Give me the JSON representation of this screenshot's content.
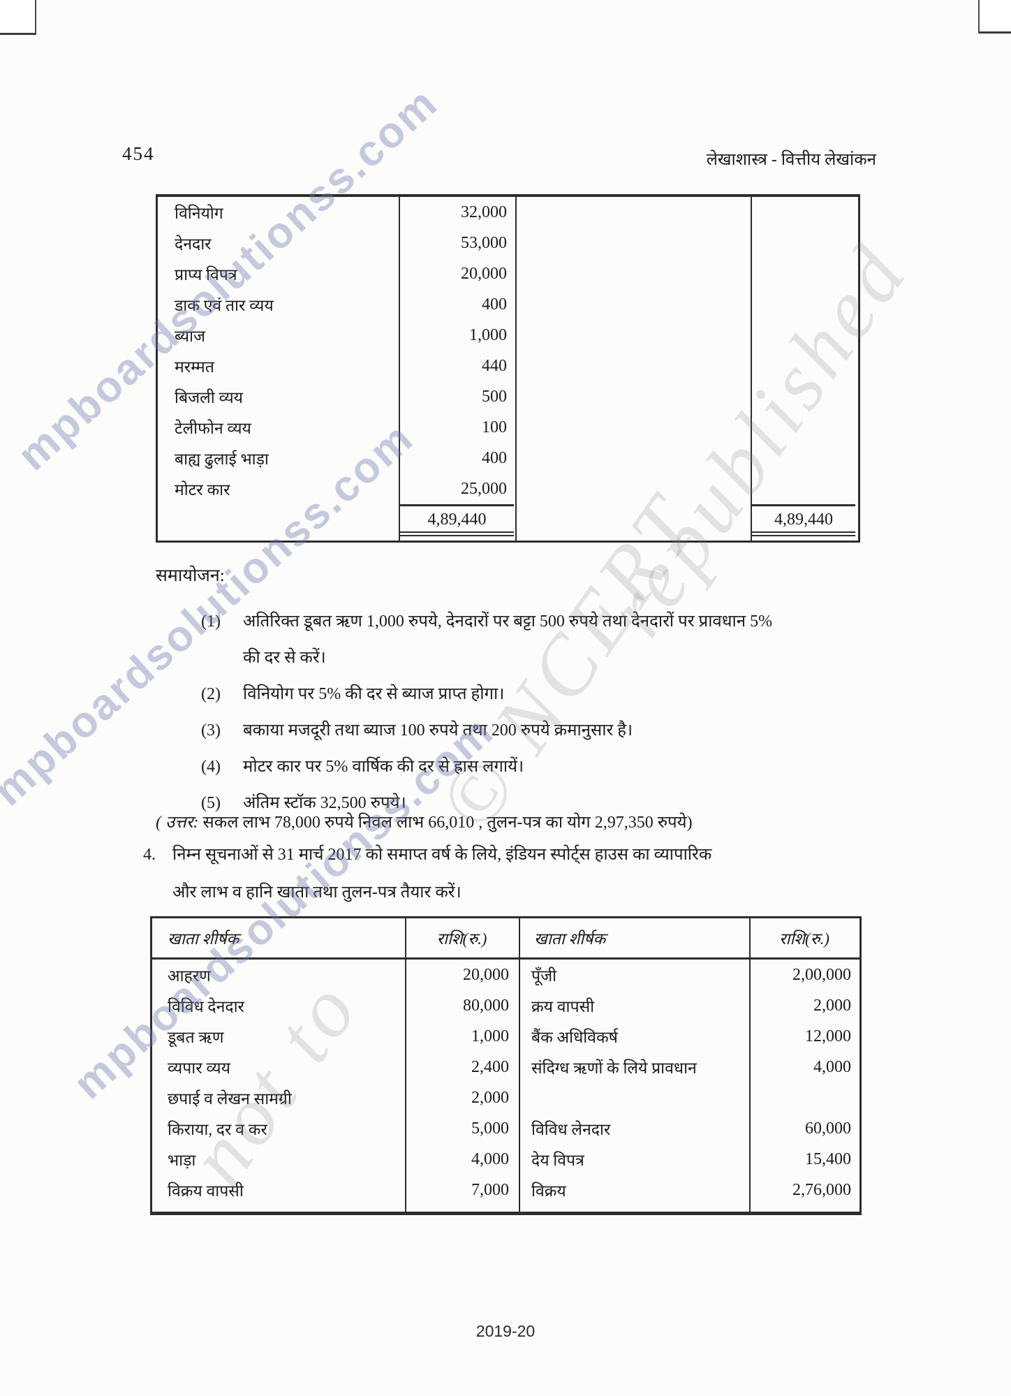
{
  "page": {
    "number": "454",
    "header_right": "लेखाशास्त्र - वित्तीय लेखांकन",
    "footer": "2019-20"
  },
  "watermarks": {
    "site": "mpboardsolutionss.com",
    "gray_1": "© NCERT",
    "gray_2": "republished",
    "gray_3": "not to"
  },
  "trial_balance_table": {
    "rows": [
      {
        "label": "विनियोग",
        "amount": "32,000"
      },
      {
        "label": "देनदार",
        "amount": "53,000"
      },
      {
        "label": "प्राप्य विपत्र",
        "amount": "20,000"
      },
      {
        "label": "डाक एवं तार व्यय",
        "amount": "400"
      },
      {
        "label": "ब्याज",
        "amount": "1,000"
      },
      {
        "label": "मरम्मत",
        "amount": "440"
      },
      {
        "label": "बिजली व्यय",
        "amount": "500"
      },
      {
        "label": "टेलीफोन व्यय",
        "amount": "100"
      },
      {
        "label": "बाह्य ढुलाई भाड़ा",
        "amount": "400"
      },
      {
        "label": "मोटर कार",
        "amount": "25,000"
      }
    ],
    "total_left": "4,89,440",
    "total_right": "4,89,440"
  },
  "adjustments": {
    "heading": "समायोजन:",
    "items": [
      {
        "num": "(1)",
        "lines": [
          "अतिरिक्त डूबत ऋण 1,000 रुपये, देनदारों पर बट्टा 500 रुपये तथा देनदारों पर प्रावधान 5%",
          "की दर से करें।"
        ]
      },
      {
        "num": "(2)",
        "lines": [
          "विनियोग पर 5% की दर से ब्याज प्राप्त होगा।"
        ]
      },
      {
        "num": "(3)",
        "lines": [
          "बकाया मजदूरी तथा ब्याज 100 रुपये तथा 200 रुपये क्रमानुसार है।"
        ]
      },
      {
        "num": "(4)",
        "lines": [
          "मोटर कार पर 5% वार्षिक की दर से ह्रास लगायें।"
        ]
      },
      {
        "num": "(5)",
        "lines": [
          "अंतिम स्टॉक 32,500 रुपये।"
        ]
      }
    ],
    "answer_label": "( उत्तर:",
    "answer_text": "सकल लाभ 78,000 रुपये निवल लाभ 66,010 , तुलन-पत्र का योग 2,97,350 रुपये)"
  },
  "question4": {
    "number": "4.",
    "lines": [
      "निम्न सूचनाओं से 31 मार्च 2017 को समाप्त वर्ष के लिये, इंडियन स्पोर्ट्स हाउस का व्यापारिक",
      "और लाभ व हानि खाता तथा तुलन-पत्र तैयार करें।"
    ]
  },
  "accounts_table": {
    "headers": [
      "खाता शीर्षक",
      "राशि(रु.)",
      "खाता शीर्षक",
      "राशि(रु.)"
    ],
    "rows": [
      [
        "आहरण",
        "20,000",
        "पूँजी",
        "2,00,000"
      ],
      [
        "विविध देनदार",
        "80,000",
        "क्रय वापसी",
        "2,000"
      ],
      [
        "डूबत ऋण",
        "1,000",
        "बैंक अधिविकर्ष",
        "12,000"
      ],
      [
        "व्यपार व्यय",
        "2,400",
        "संदिग्ध ऋणों के लिये प्रावधान",
        "4,000"
      ],
      [
        "छपाई व लेखन सामग्री",
        "2,000",
        "",
        ""
      ],
      [
        "किराया, दर व कर",
        "5,000",
        "विविध लेनदार",
        "60,000"
      ],
      [
        "भाड़ा",
        "4,000",
        "देय विपत्र",
        "15,400"
      ],
      [
        "विक्रय वापसी",
        "7,000",
        "विक्रय",
        "2,76,000"
      ]
    ]
  },
  "colors": {
    "border": "#2d2d2d",
    "text": "#1b1b1b",
    "watermark_blue": "rgba(106,118,176,0.38)",
    "watermark_gray": "rgba(125,125,125,0.20)"
  }
}
